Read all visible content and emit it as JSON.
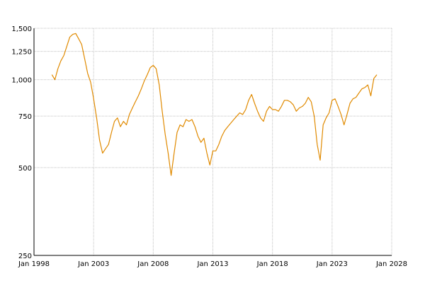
{
  "chart_data": {
    "type": "line",
    "title": "",
    "xlabel": "",
    "ylabel": "",
    "x_ticks": [
      "Jan 1998",
      "Jan 2003",
      "Jan 2008",
      "Jan 2013",
      "Jan 2018",
      "Jan 2023",
      "Jan 2028"
    ],
    "y_ticks": [
      "250",
      "500",
      "750",
      "1,000",
      "1,250",
      "1,500"
    ],
    "y_tick_values": [
      250,
      500,
      750,
      1000,
      1250,
      1500
    ],
    "y_scale": "log",
    "xlim": [
      "1998-01",
      "2028-01"
    ],
    "ylim": [
      250,
      1500
    ],
    "grid": true,
    "legend": "none",
    "series": [
      {
        "color": "#e08a00",
        "points": [
          [
            "1999-07",
            1040
          ],
          [
            "1999-10",
            1000
          ],
          [
            "2000-01",
            1090
          ],
          [
            "2000-04",
            1160
          ],
          [
            "2000-07",
            1210
          ],
          [
            "2000-10",
            1300
          ],
          [
            "2001-01",
            1400
          ],
          [
            "2001-04",
            1430
          ],
          [
            "2001-07",
            1440
          ],
          [
            "2001-10",
            1380
          ],
          [
            "2002-01",
            1320
          ],
          [
            "2002-04",
            1180
          ],
          [
            "2002-07",
            1050
          ],
          [
            "2002-10",
            980
          ],
          [
            "2003-01",
            860
          ],
          [
            "2003-04",
            740
          ],
          [
            "2003-07",
            620
          ],
          [
            "2003-10",
            560
          ],
          [
            "2004-01",
            580
          ],
          [
            "2004-04",
            600
          ],
          [
            "2004-07",
            660
          ],
          [
            "2004-10",
            720
          ],
          [
            "2005-01",
            740
          ],
          [
            "2005-04",
            690
          ],
          [
            "2005-07",
            720
          ],
          [
            "2005-10",
            700
          ],
          [
            "2006-01",
            760
          ],
          [
            "2006-04",
            800
          ],
          [
            "2006-07",
            840
          ],
          [
            "2006-10",
            880
          ],
          [
            "2007-01",
            930
          ],
          [
            "2007-04",
            990
          ],
          [
            "2007-07",
            1040
          ],
          [
            "2007-10",
            1100
          ],
          [
            "2008-01",
            1120
          ],
          [
            "2008-04",
            1090
          ],
          [
            "2008-07",
            960
          ],
          [
            "2008-10",
            780
          ],
          [
            "2009-01",
            650
          ],
          [
            "2009-04",
            560
          ],
          [
            "2009-07",
            470
          ],
          [
            "2009-10",
            560
          ],
          [
            "2010-01",
            660
          ],
          [
            "2010-04",
            700
          ],
          [
            "2010-07",
            690
          ],
          [
            "2010-10",
            730
          ],
          [
            "2011-01",
            720
          ],
          [
            "2011-04",
            730
          ],
          [
            "2011-07",
            690
          ],
          [
            "2011-10",
            640
          ],
          [
            "2012-01",
            610
          ],
          [
            "2012-04",
            630
          ],
          [
            "2012-07",
            560
          ],
          [
            "2012-10",
            510
          ],
          [
            "2013-01",
            570
          ],
          [
            "2013-04",
            570
          ],
          [
            "2013-07",
            600
          ],
          [
            "2013-10",
            640
          ],
          [
            "2014-01",
            670
          ],
          [
            "2014-04",
            690
          ],
          [
            "2014-07",
            710
          ],
          [
            "2014-10",
            730
          ],
          [
            "2015-01",
            750
          ],
          [
            "2015-04",
            770
          ],
          [
            "2015-07",
            760
          ],
          [
            "2015-10",
            790
          ],
          [
            "2016-01",
            850
          ],
          [
            "2016-04",
            890
          ],
          [
            "2016-07",
            830
          ],
          [
            "2016-10",
            780
          ],
          [
            "2017-01",
            740
          ],
          [
            "2017-04",
            720
          ],
          [
            "2017-07",
            780
          ],
          [
            "2017-10",
            810
          ],
          [
            "2018-01",
            790
          ],
          [
            "2018-04",
            790
          ],
          [
            "2018-07",
            780
          ],
          [
            "2018-10",
            810
          ],
          [
            "2019-01",
            850
          ],
          [
            "2019-04",
            850
          ],
          [
            "2019-07",
            840
          ],
          [
            "2019-10",
            820
          ],
          [
            "2020-01",
            780
          ],
          [
            "2020-04",
            800
          ],
          [
            "2020-07",
            810
          ],
          [
            "2020-10",
            830
          ],
          [
            "2021-01",
            870
          ],
          [
            "2021-04",
            840
          ],
          [
            "2021-07",
            750
          ],
          [
            "2021-10",
            600
          ],
          [
            "2022-01",
            530
          ],
          [
            "2022-04",
            700
          ],
          [
            "2022-07",
            740
          ],
          [
            "2022-10",
            770
          ],
          [
            "2023-01",
            850
          ],
          [
            "2023-04",
            860
          ],
          [
            "2023-07",
            810
          ],
          [
            "2023-10",
            760
          ],
          [
            "2024-01",
            700
          ],
          [
            "2024-04",
            760
          ],
          [
            "2024-07",
            830
          ],
          [
            "2024-10",
            860
          ],
          [
            "2025-01",
            870
          ],
          [
            "2025-04",
            900
          ],
          [
            "2025-07",
            930
          ],
          [
            "2025-10",
            940
          ],
          [
            "2026-01",
            960
          ],
          [
            "2026-04",
            880
          ],
          [
            "2026-07",
            1010
          ],
          [
            "2026-10",
            1040
          ]
        ]
      }
    ]
  }
}
